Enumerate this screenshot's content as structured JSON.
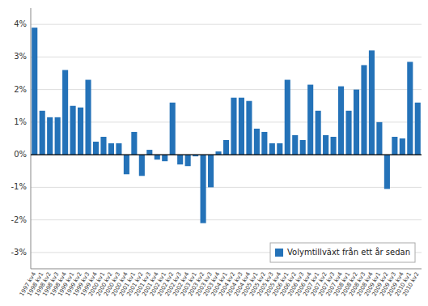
{
  "chart_data": {
    "type": "bar",
    "categories": [
      "1997 kv4",
      "1998 kv1",
      "1998 kv2",
      "1998 kv3",
      "1998 kv4",
      "1999 kv1",
      "1999 kv2",
      "1999 kv3",
      "1999 kv4",
      "2000 kv1",
      "2000 kv2",
      "2000 kv3",
      "2000 kv4",
      "2001 kv1",
      "2001 kv2",
      "2001 kv3",
      "2001 kv4",
      "2002 kv1",
      "2002 kv2",
      "2002 kv3",
      "2002 kv4",
      "2003 kv1",
      "2003 kv2",
      "2003 kv3",
      "2003 kv4",
      "2004 kv1",
      "2004 kv2",
      "2004 kv3",
      "2004 kv4",
      "2005 kv1",
      "2005 kv2",
      "2005 kv3",
      "2005 kv4",
      "2006 kv1",
      "2006 kv2",
      "2006 kv3",
      "2006 kv4",
      "2007 kv1",
      "2007 kv2",
      "2007 kv3",
      "2007 kv4",
      "2008 kv1",
      "2008 kv2",
      "2008 kv3",
      "2008 kv4",
      "2009 kv1",
      "2009 kv2",
      "2009 kv3",
      "2009 kv4",
      "2010 kv1",
      "2010 kv2"
    ],
    "series": [
      {
        "name": "Volymtillväxt från ett år sedan",
        "color": "#2472b8",
        "values": [
          3.9,
          1.35,
          1.15,
          1.15,
          2.6,
          1.5,
          1.45,
          2.3,
          0.4,
          0.55,
          0.35,
          0.35,
          -0.6,
          0.7,
          -0.65,
          0.15,
          -0.15,
          -0.2,
          1.6,
          -0.3,
          -0.35,
          -0.05,
          -2.1,
          -1.0,
          0.1,
          0.45,
          1.75,
          1.75,
          1.65,
          0.8,
          0.7,
          0.35,
          0.35,
          2.3,
          0.6,
          0.45,
          2.15,
          1.35,
          0.6,
          0.55,
          2.1,
          1.35,
          2.0,
          2.75,
          3.2,
          1.0,
          -1.05,
          0.55,
          0.5,
          2.85,
          1.6
        ]
      }
    ],
    "ylim": [
      -3.5,
      4.5
    ],
    "yticks": [
      {
        "value": -3,
        "label": "-3%"
      },
      {
        "value": -2,
        "label": "-2%"
      },
      {
        "value": -1,
        "label": "-1%"
      },
      {
        "value": 0,
        "label": "0%"
      },
      {
        "value": 1,
        "label": "1%"
      },
      {
        "value": 2,
        "label": "2%"
      },
      {
        "value": 3,
        "label": "3%"
      },
      {
        "value": 4,
        "label": "4%"
      }
    ],
    "grid": true,
    "legend": "lower right"
  }
}
